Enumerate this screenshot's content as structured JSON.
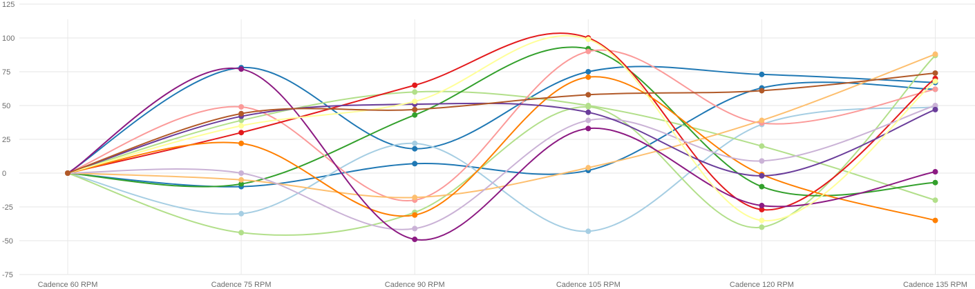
{
  "chart_data": {
    "type": "line",
    "title": "",
    "xlabel": "",
    "ylabel": "",
    "categories": [
      "Cadence 60 RPM",
      "Cadence 75 RPM",
      "Cadence 90 RPM",
      "Cadence 105 RPM",
      "Cadence 120 RPM",
      "Cadence 135 RPM"
    ],
    "ylim": [
      -75,
      125
    ],
    "yticks": [
      125,
      100,
      75,
      50,
      25,
      0,
      -25,
      -50,
      -75
    ],
    "grid": true,
    "legend": "none",
    "smooth": true,
    "series": [
      {
        "color": "#1f78b4",
        "values": [
          0,
          78,
          18,
          75,
          73,
          67
        ]
      },
      {
        "color": "#1f78b4",
        "values": [
          0,
          -10,
          7,
          2,
          63,
          62
        ]
      },
      {
        "color": "#a6cee3",
        "values": [
          0,
          -30,
          22,
          -43,
          36,
          49
        ]
      },
      {
        "color": "#b2df8a",
        "values": [
          0,
          39,
          60,
          50,
          20,
          -20
        ]
      },
      {
        "color": "#b2df8a",
        "values": [
          0,
          -44,
          -29,
          49,
          -40,
          87
        ]
      },
      {
        "color": "#33a02c",
        "values": [
          0,
          -8,
          43,
          92,
          -10,
          -7
        ]
      },
      {
        "color": "#fb9a99",
        "values": [
          0,
          49,
          -20,
          90,
          37,
          62
        ]
      },
      {
        "color": "#e31a1c",
        "values": [
          0,
          30,
          65,
          100,
          -27,
          70
        ]
      },
      {
        "color": "#fdbf6f",
        "values": [
          0,
          -5,
          -18,
          4,
          39,
          88
        ]
      },
      {
        "color": "#ff7f00",
        "values": [
          0,
          22,
          -31,
          71,
          -1,
          -35
        ]
      },
      {
        "color": "#cab2d6",
        "values": [
          0,
          0,
          -41,
          39,
          9,
          50
        ]
      },
      {
        "color": "#6a3d9a",
        "values": [
          0,
          42,
          51,
          45,
          -2,
          47
        ]
      },
      {
        "color": "#8c1a82",
        "values": [
          0,
          77,
          -49,
          33,
          -24,
          1
        ]
      },
      {
        "color": "#ffff99",
        "values": [
          0,
          35,
          53,
          99,
          -35,
          68
        ]
      },
      {
        "color": "#b15928",
        "values": [
          0,
          44,
          47,
          58,
          61,
          74
        ]
      }
    ]
  }
}
